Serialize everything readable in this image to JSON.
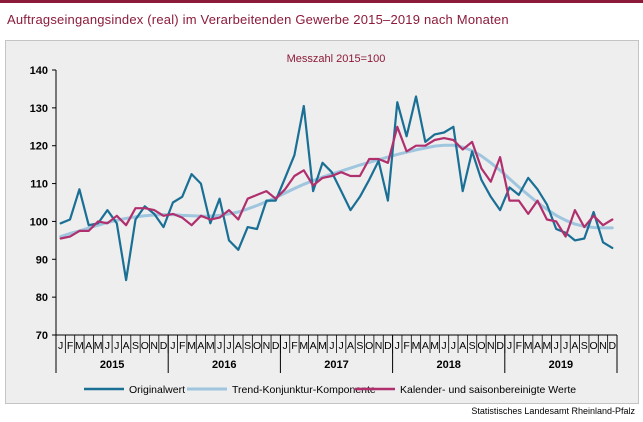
{
  "title": "Auftragseingangsindex (real) im Verarbeitenden Gewerbe 2015–2019 nach Monaten",
  "source": "Statistisches Landesamt Rheinland-Pfalz",
  "chart_data": {
    "type": "line",
    "subtitle": "Messzahl 2015=100",
    "month_labels": [
      "J",
      "F",
      "M",
      "A",
      "M",
      "J",
      "J",
      "A",
      "S",
      "O",
      "N",
      "D"
    ],
    "years": [
      "2015",
      "2016",
      "2017",
      "2018",
      "2019"
    ],
    "ylim": [
      70,
      140
    ],
    "yticks": [
      70,
      80,
      90,
      100,
      110,
      120,
      130,
      140
    ],
    "grid": false,
    "legend_position": "bottom",
    "series": [
      {
        "name": "Originalwert",
        "color": "#1a6f95",
        "values": [
          99.5,
          100.5,
          108.5,
          99.0,
          99.5,
          103.0,
          99.5,
          84.5,
          100.5,
          104.0,
          102.0,
          98.5,
          105.0,
          106.5,
          112.5,
          110.0,
          99.5,
          106.0,
          95.0,
          92.5,
          98.5,
          98.0,
          105.5,
          105.5,
          111.5,
          117.5,
          130.5,
          108.0,
          115.5,
          113.0,
          108.0,
          103.0,
          106.5,
          111.0,
          116.0,
          105.5,
          131.5,
          122.5,
          133.0,
          121.0,
          123.0,
          123.5,
          125.0,
          108.0,
          118.5,
          111.0,
          106.5,
          103.0,
          109.0,
          107.0,
          111.5,
          108.5,
          104.5,
          98.0,
          97.0,
          95.0,
          95.5,
          102.5,
          94.5,
          93.0
        ]
      },
      {
        "name": "Trend-Konjunktur-Komponente",
        "color": "#9fc6de",
        "values": [
          96.0,
          96.8,
          97.5,
          98.3,
          99.0,
          99.7,
          100.3,
          100.8,
          101.2,
          101.5,
          101.7,
          101.8,
          101.8,
          101.6,
          101.5,
          101.4,
          101.4,
          101.6,
          102.0,
          102.5,
          103.3,
          104.2,
          105.2,
          106.3,
          107.5,
          108.7,
          109.8,
          110.8,
          111.7,
          112.5,
          113.3,
          114.1,
          114.9,
          115.6,
          116.3,
          117.0,
          117.7,
          118.3,
          118.9,
          119.4,
          119.9,
          120.1,
          120.1,
          119.6,
          118.7,
          117.3,
          115.5,
          113.5,
          111.3,
          109.1,
          107.0,
          105.0,
          103.2,
          101.6,
          100.3,
          99.3,
          98.7,
          98.4,
          98.3,
          98.3
        ]
      },
      {
        "name": "Kalender- und saisonbereinigte Werte",
        "color": "#b0306e",
        "values": [
          95.5,
          96.0,
          97.5,
          97.5,
          100.0,
          99.5,
          101.5,
          99.0,
          103.5,
          103.5,
          103.0,
          101.5,
          102.0,
          101.0,
          99.0,
          101.5,
          100.5,
          101.0,
          103.0,
          100.5,
          106.0,
          107.0,
          108.0,
          106.0,
          108.5,
          112.0,
          113.5,
          109.5,
          111.5,
          112.0,
          113.0,
          112.0,
          112.0,
          116.5,
          116.5,
          115.5,
          125.0,
          118.5,
          120.0,
          120.0,
          121.5,
          122.0,
          121.5,
          119.0,
          121.0,
          114.0,
          110.5,
          117.0,
          105.5,
          105.5,
          102.0,
          105.5,
          100.5,
          100.0,
          96.0,
          103.0,
          98.5,
          101.5,
          99.0,
          100.5
        ]
      }
    ]
  }
}
